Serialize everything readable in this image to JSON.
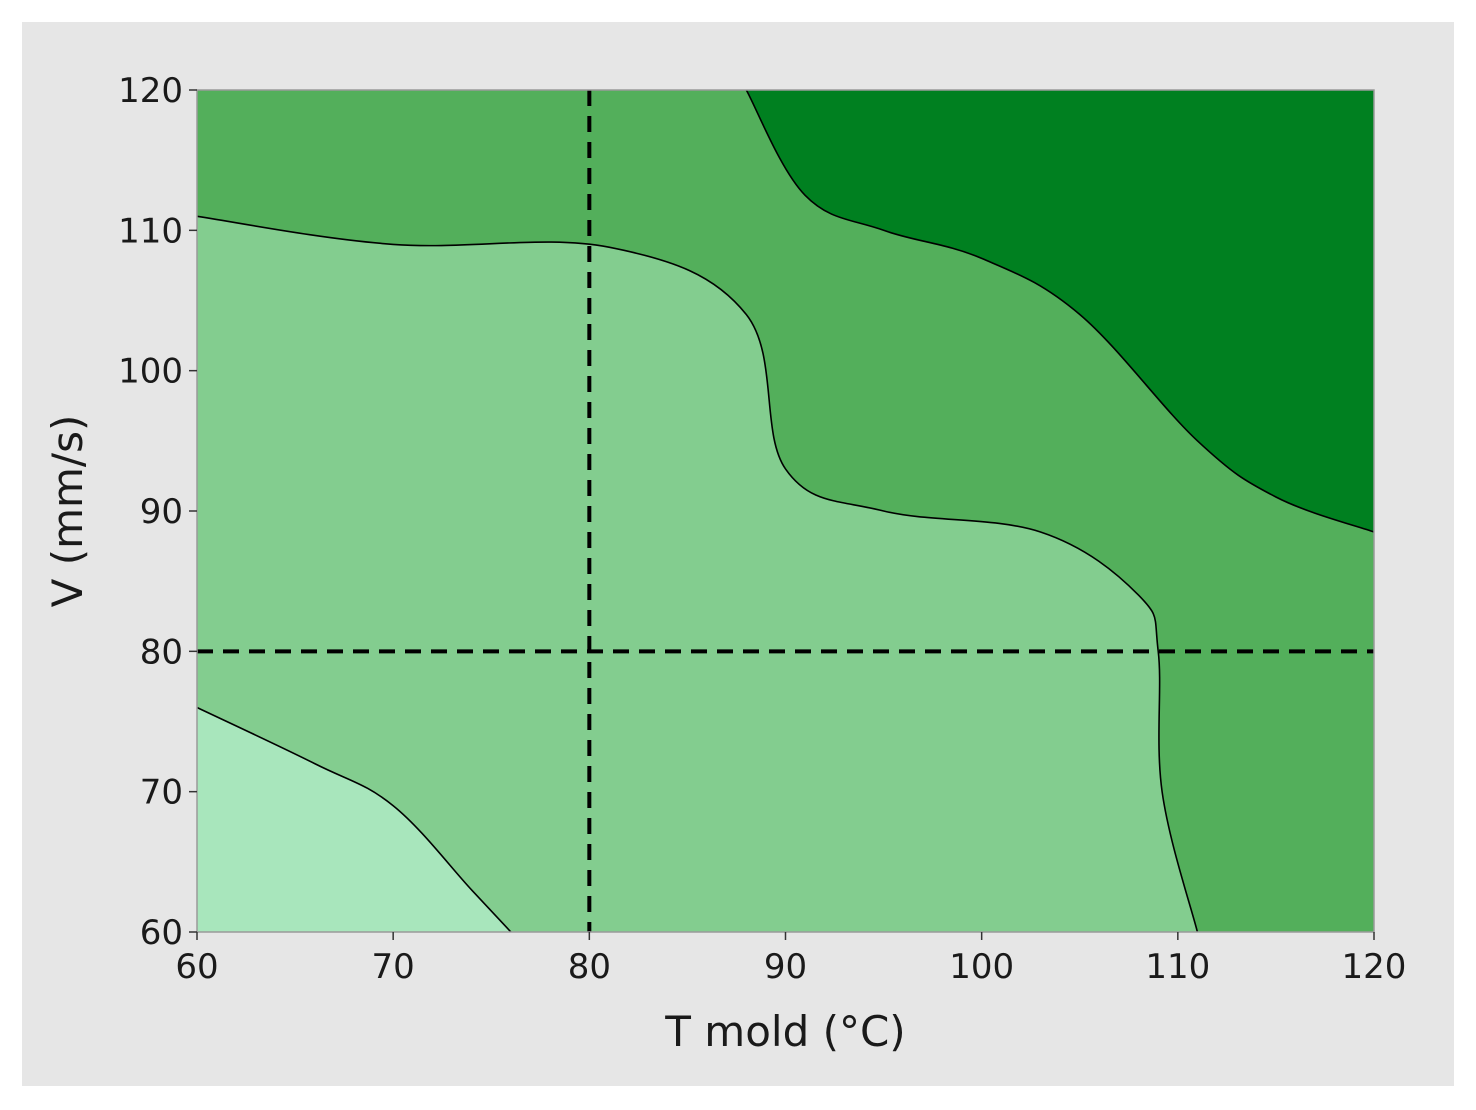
{
  "chart_data": {
    "type": "contour",
    "xlabel": "T mold (°C)",
    "ylabel": "V (mm/s)",
    "xlim": [
      60,
      120
    ],
    "ylim": [
      60,
      120
    ],
    "xticks": [
      60,
      70,
      80,
      90,
      100,
      110,
      120
    ],
    "yticks": [
      60,
      70,
      80,
      90,
      100,
      110,
      120
    ],
    "grid": false,
    "legend": "none",
    "colors": {
      "figure_background": "#e6e6e6",
      "level_1": "#a8e6bc",
      "level_2": "#83cd8f",
      "level_3": "#53af5b",
      "level_4": "#008020",
      "contour_line": "#000000",
      "reference_line": "#000000"
    },
    "regions": [
      {
        "level": 1,
        "description_points": [
          [
            60,
            60
          ],
          [
            60,
            76
          ],
          [
            66,
            72
          ],
          [
            70,
            69
          ],
          [
            74,
            63
          ],
          [
            76,
            60
          ]
        ]
      },
      {
        "level": 3,
        "description_points": [
          [
            60,
            111
          ],
          [
            70,
            109
          ],
          [
            81,
            108.8
          ],
          [
            88,
            104
          ],
          [
            90,
            93
          ],
          [
            95,
            90
          ],
          [
            103,
            88.5
          ],
          [
            108,
            84
          ],
          [
            109,
            80
          ],
          [
            109.2,
            70
          ],
          [
            111,
            60
          ],
          [
            120,
            60
          ],
          [
            120,
            88.5
          ],
          [
            115,
            91
          ],
          [
            111,
            95
          ],
          [
            105,
            104
          ],
          [
            100,
            108
          ],
          [
            95,
            110
          ],
          [
            91,
            112.5
          ],
          [
            88,
            117
          ],
          [
            88,
            120
          ],
          [
            60,
            120
          ]
        ]
      },
      {
        "level": 4,
        "description_points": [
          [
            88,
            120
          ],
          [
            91,
            112.5
          ],
          [
            95,
            110
          ],
          [
            100,
            108
          ],
          [
            105,
            104
          ],
          [
            111,
            95
          ],
          [
            115,
            91
          ],
          [
            120,
            88.5
          ],
          [
            120,
            120
          ]
        ]
      }
    ],
    "reference_lines": {
      "vertical_x": 80,
      "horizontal_y": 80
    }
  }
}
